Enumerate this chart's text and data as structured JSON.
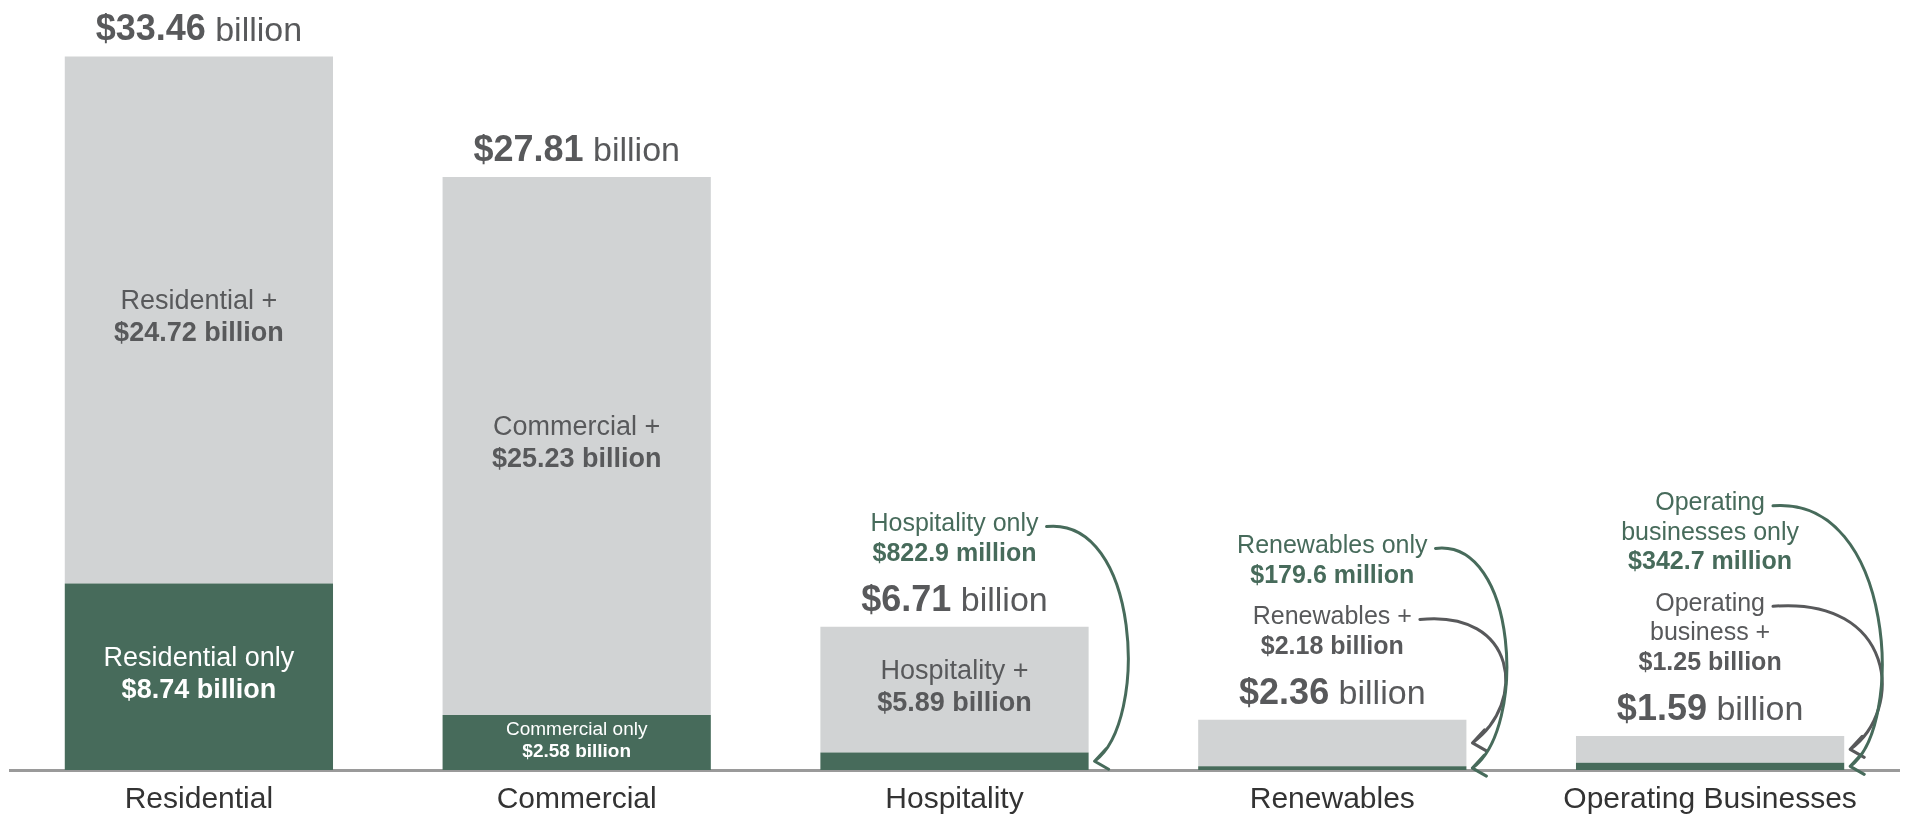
{
  "chart_data": {
    "type": "bar",
    "stacked": true,
    "categories": [
      "Residential",
      "Commercial",
      "Hospitality",
      "Renewables",
      "Operating Businesses"
    ],
    "series": [
      {
        "color": "#476b5b",
        "values": [
          8.74,
          2.58,
          0.8229,
          0.1796,
          0.3427
        ],
        "value_labels": [
          "Residential only\n$8.74 billion",
          "Commercial only\n$2.58 billion",
          "Hospitality only\n$822.9 million",
          "Renewables only\n$179.6 million",
          "Operating\nbusinesses only\n$342.7 million"
        ]
      },
      {
        "color": "#d1d3d4",
        "values": [
          24.72,
          25.23,
          5.89,
          2.18,
          1.25
        ],
        "value_labels": [
          "Residential +\n$24.72 billion",
          "Commercial +\n$25.23 billion",
          "Hospitality +\n$5.89 billion",
          "Renewables +\n$2.18 billion",
          "Operating\nbusiness +\n$1.25 billion"
        ]
      }
    ],
    "totals": [
      "$33.46 billion",
      "$27.81 billion",
      "$6.71 billion",
      "$2.36 billion",
      "$1.59 billion"
    ]
  }
}
